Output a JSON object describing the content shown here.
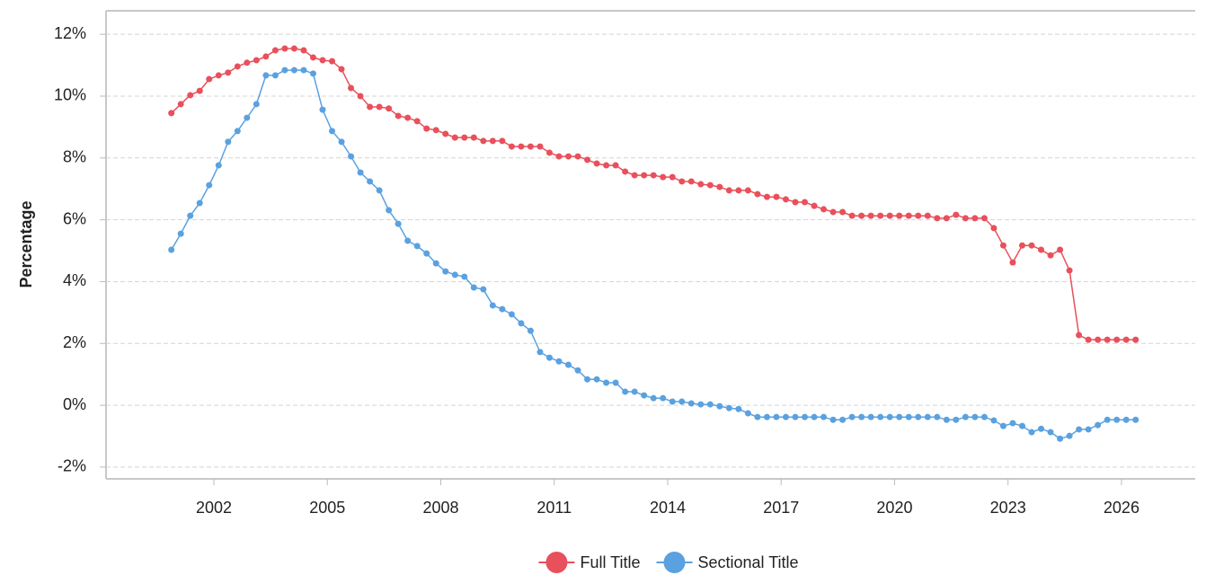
{
  "chart_data": {
    "type": "line",
    "y_label": "Percentage",
    "x": [
      2000.875,
      2001.125,
      2001.375,
      2001.625,
      2001.875,
      2002.125,
      2002.375,
      2002.625,
      2002.875,
      2003.125,
      2003.375,
      2003.625,
      2003.875,
      2004.125,
      2004.375,
      2004.625,
      2004.875,
      2005.125,
      2005.375,
      2005.625,
      2005.875,
      2006.125,
      2006.375,
      2006.625,
      2006.875,
      2007.125,
      2007.375,
      2007.625,
      2007.875,
      2008.125,
      2008.375,
      2008.625,
      2008.875,
      2009.125,
      2009.375,
      2009.625,
      2009.875,
      2010.125,
      2010.375,
      2010.625,
      2010.875,
      2011.125,
      2011.375,
      2011.625,
      2011.875,
      2012.125,
      2012.375,
      2012.625,
      2012.875,
      2013.125,
      2013.375,
      2013.625,
      2013.875,
      2014.125,
      2014.375,
      2014.625,
      2014.875,
      2015.125,
      2015.375,
      2015.625,
      2015.875,
      2016.125,
      2016.375,
      2016.625,
      2016.875,
      2017.125,
      2017.375,
      2017.625,
      2017.875,
      2018.125,
      2018.375,
      2018.625,
      2018.875,
      2019.125,
      2019.375,
      2019.625,
      2019.875,
      2020.125,
      2020.375,
      2020.625,
      2020.875,
      2021.125,
      2021.375,
      2021.625,
      2021.875,
      2022.125,
      2022.375,
      2022.625,
      2022.875,
      2023.125,
      2023.375,
      2023.625,
      2023.875,
      2024.125,
      2024.375,
      2024.625,
      2024.875,
      2025.125,
      2025.375,
      2025.625,
      2025.875,
      2026.125,
      2026.375
    ],
    "series": [
      {
        "name": "Full Title",
        "color": "#e8505b",
        "values": [
          9.45,
          9.74,
          10.03,
          10.17,
          10.55,
          10.67,
          10.76,
          10.96,
          11.08,
          11.16,
          11.28,
          11.48,
          11.54,
          11.54,
          11.48,
          11.25,
          11.16,
          11.13,
          10.87,
          10.26,
          10.0,
          9.65,
          9.65,
          9.6,
          9.36,
          9.3,
          9.19,
          8.95,
          8.9,
          8.78,
          8.66,
          8.66,
          8.66,
          8.55,
          8.55,
          8.55,
          8.37,
          8.37,
          8.37,
          8.37,
          8.17,
          8.05,
          8.05,
          8.05,
          7.94,
          7.82,
          7.76,
          7.76,
          7.56,
          7.44,
          7.44,
          7.44,
          7.38,
          7.38,
          7.24,
          7.24,
          7.15,
          7.12,
          7.06,
          6.95,
          6.95,
          6.95,
          6.83,
          6.74,
          6.74,
          6.66,
          6.57,
          6.57,
          6.45,
          6.34,
          6.25,
          6.25,
          6.13,
          6.13,
          6.13,
          6.13,
          6.13,
          6.13,
          6.13,
          6.13,
          6.13,
          6.05,
          6.05,
          6.16,
          6.05,
          6.05,
          6.05,
          5.73,
          5.17,
          4.62,
          5.17,
          5.17,
          5.03,
          4.85,
          5.03,
          4.36,
          2.27,
          2.12,
          2.12,
          2.12,
          2.12,
          2.12,
          2.12
        ]
      },
      {
        "name": "Sectional Title",
        "color": "#5aa1e0",
        "values": [
          5.03,
          5.55,
          6.13,
          6.54,
          7.12,
          7.76,
          8.52,
          8.87,
          9.3,
          9.74,
          10.67,
          10.67,
          10.84,
          10.84,
          10.84,
          10.73,
          9.56,
          8.87,
          8.52,
          8.05,
          7.53,
          7.24,
          6.95,
          6.31,
          5.87,
          5.32,
          5.15,
          4.91,
          4.59,
          4.33,
          4.22,
          4.16,
          3.81,
          3.75,
          3.23,
          3.11,
          2.94,
          2.65,
          2.41,
          1.72,
          1.54,
          1.42,
          1.31,
          1.13,
          0.84,
          0.84,
          0.73,
          0.73,
          0.44,
          0.44,
          0.32,
          0.23,
          0.23,
          0.12,
          0.12,
          0.06,
          0.03,
          0.03,
          -0.03,
          -0.09,
          -0.12,
          -0.26,
          -0.38,
          -0.38,
          -0.38,
          -0.38,
          -0.38,
          -0.38,
          -0.38,
          -0.38,
          -0.47,
          -0.47,
          -0.38,
          -0.38,
          -0.38,
          -0.38,
          -0.38,
          -0.38,
          -0.38,
          -0.38,
          -0.38,
          -0.38,
          -0.47,
          -0.47,
          -0.38,
          -0.38,
          -0.38,
          -0.49,
          -0.67,
          -0.58,
          -0.67,
          -0.87,
          -0.76,
          -0.87,
          -1.08,
          -0.99,
          -0.78,
          -0.78,
          -0.64,
          -0.47,
          -0.47,
          -0.47,
          -0.47
        ]
      }
    ],
    "xlim": [
      1999.148,
      2027.95
    ],
    "xticks": [
      2002,
      2005,
      2008,
      2011,
      2014,
      2017,
      2020,
      2023,
      2026
    ],
    "ylim": [
      -2.38,
      12.76
    ],
    "yticks": [
      {
        "value": -2,
        "label": "-2%"
      },
      {
        "value": 0,
        "label": "0%"
      },
      {
        "value": 2,
        "label": "2%"
      },
      {
        "value": 4,
        "label": "4%"
      },
      {
        "value": 6,
        "label": "6%"
      },
      {
        "value": 8,
        "label": "8%"
      },
      {
        "value": 10,
        "label": "10%"
      },
      {
        "value": 12,
        "label": "12%"
      }
    ],
    "grid": true,
    "legend": "bottom"
  }
}
